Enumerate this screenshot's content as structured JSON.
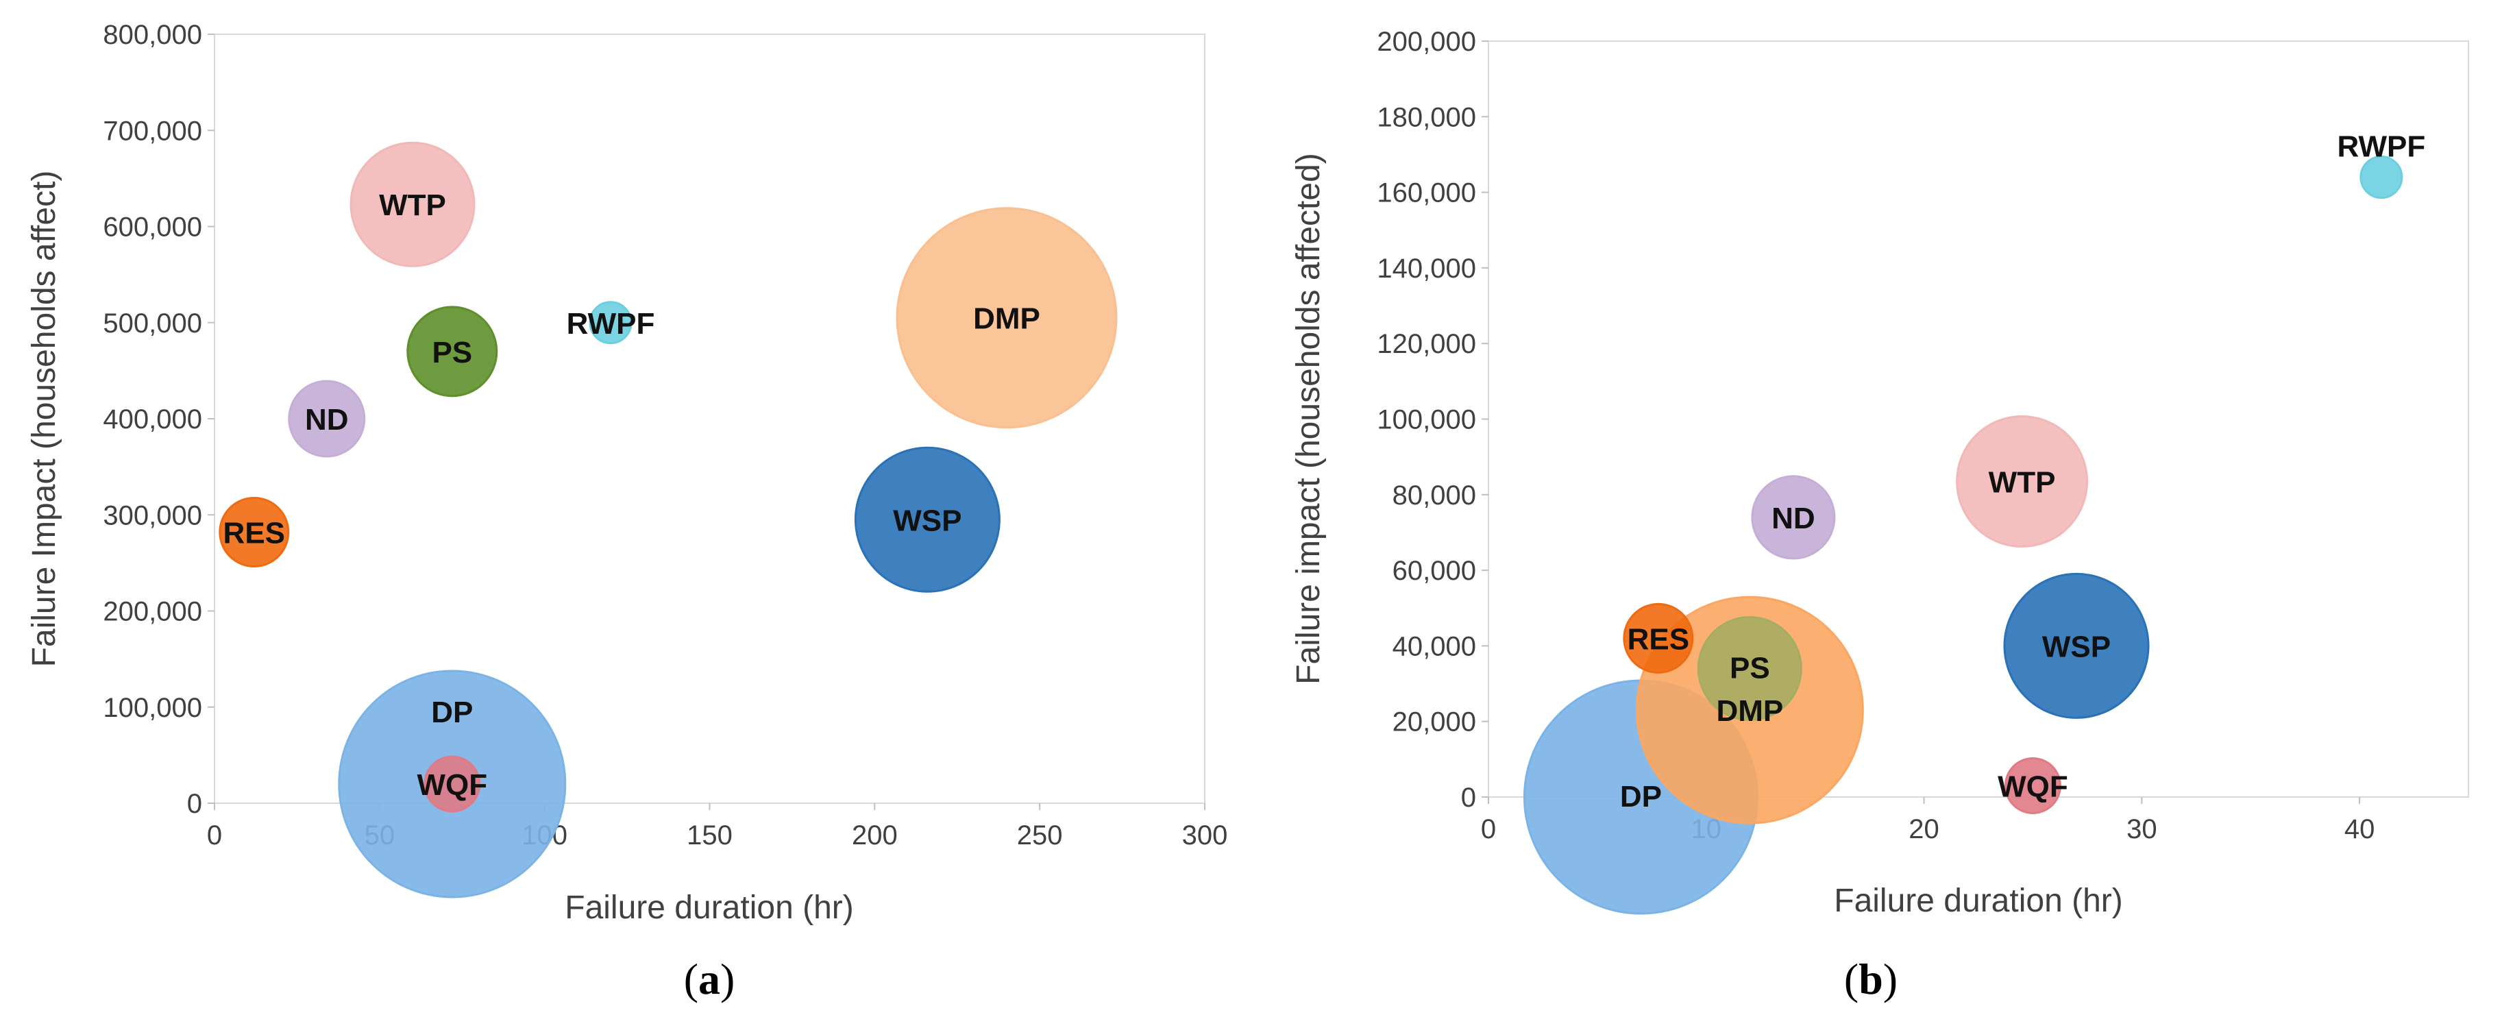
{
  "chart_data": [
    {
      "type": "scatter",
      "subtype": "bubble",
      "panel_label": "a",
      "xlabel": "Failure duration (hr)",
      "ylabel": "Failure Impact (households affect)",
      "xlim": [
        0,
        300
      ],
      "ylim": [
        0,
        800000
      ],
      "xticks": [
        0,
        50,
        100,
        150,
        200,
        250,
        300
      ],
      "yticks": [
        0,
        100000,
        200000,
        300000,
        400000,
        500000,
        600000,
        700000,
        800000
      ],
      "xtick_labels": [
        "0",
        "50",
        "100",
        "150",
        "200",
        "250",
        "300"
      ],
      "ytick_labels": [
        "0",
        "100,000",
        "200,000",
        "300,000",
        "400,000",
        "500,000",
        "600,000",
        "700,000",
        "800,000"
      ],
      "points": [
        {
          "label": "WTP",
          "x": 60,
          "y": 623000,
          "size": 18,
          "color": "#f2b8b8"
        },
        {
          "label": "PS",
          "x": 72,
          "y": 470000,
          "size": 13,
          "color": "#5e8f2b"
        },
        {
          "label": "RWPF",
          "x": 120,
          "y": 500000,
          "size": 6,
          "color": "#6ccfe0"
        },
        {
          "label": "DMP",
          "x": 240,
          "y": 505000,
          "size": 32,
          "color": "#fbbf8f"
        },
        {
          "label": "ND",
          "x": 34,
          "y": 400000,
          "size": 11,
          "color": "#c4add6"
        },
        {
          "label": "RES",
          "x": 12,
          "y": 282000,
          "size": 10,
          "color": "#f06a10"
        },
        {
          "label": "WSP",
          "x": 216,
          "y": 295000,
          "size": 21,
          "color": "#2a72b8"
        },
        {
          "label": "DP",
          "x": 72,
          "y": 20000,
          "size": 33,
          "color": "#7ab3e6"
        },
        {
          "label": "WQF",
          "x": 72,
          "y": 20000,
          "size": 8,
          "color": "#e07a85"
        }
      ]
    },
    {
      "type": "scatter",
      "subtype": "bubble",
      "panel_label": "b",
      "xlabel": "Failure duration (hr)",
      "ylabel": "Failure impact (households affected)",
      "xlim": [
        0,
        45
      ],
      "ylim": [
        0,
        200000
      ],
      "xticks": [
        0,
        10,
        20,
        30,
        40
      ],
      "yticks": [
        0,
        20000,
        40000,
        60000,
        80000,
        100000,
        120000,
        140000,
        160000,
        180000,
        200000
      ],
      "xtick_labels": [
        "0",
        "10",
        "20",
        "30",
        "40"
      ],
      "ytick_labels": [
        "0",
        "20,000",
        "40,000",
        "60,000",
        "80,000",
        "100,000",
        "120,000",
        "140,000",
        "160,000",
        "180,000",
        "200,000"
      ],
      "points": [
        {
          "label": "RWPF",
          "x": 41,
          "y": 164000,
          "size": 6,
          "color": "#6ccfe0"
        },
        {
          "label": "WTP",
          "x": 24.5,
          "y": 83500,
          "size": 19,
          "color": "#f2b8b8"
        },
        {
          "label": "ND",
          "x": 14,
          "y": 74000,
          "size": 12,
          "color": "#c4add6"
        },
        {
          "label": "RES",
          "x": 7.8,
          "y": 42000,
          "size": 10,
          "color": "#f06a10"
        },
        {
          "label": "WSP",
          "x": 27,
          "y": 40000,
          "size": 21,
          "color": "#2a72b8"
        },
        {
          "label": "DMP",
          "x": 12,
          "y": 23000,
          "size": 33,
          "color": "#fba661"
        },
        {
          "label": "PS",
          "x": 12,
          "y": 34000,
          "size": 15,
          "color": "#a5ad62"
        },
        {
          "label": "DP",
          "x": 7,
          "y": 0,
          "size": 34,
          "color": "#7ab3e6"
        },
        {
          "label": "WQF",
          "x": 25,
          "y": 3000,
          "size": 8,
          "color": "#e07a85"
        }
      ]
    }
  ]
}
